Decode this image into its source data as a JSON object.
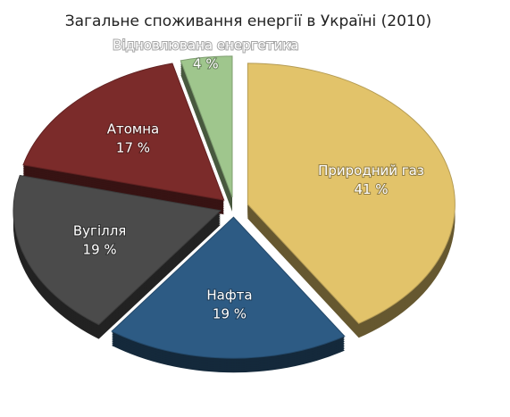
{
  "chart_data": {
    "type": "pie",
    "title": "Загальне споживання енергії в Україні (2010)",
    "categories": [
      "Природний газ",
      "Нафта",
      "Вугілля",
      "Атомна",
      "Відновлювана енергетика"
    ],
    "values": [
      41,
      19,
      19,
      17,
      4
    ],
    "value_labels": [
      "41 %",
      "19 %",
      "19 %",
      "17 %",
      "4 %"
    ],
    "colors": [
      "#e2c36a",
      "#2d5b84",
      "#4b4b4b",
      "#7b2b2a",
      "#9fc68d"
    ]
  }
}
